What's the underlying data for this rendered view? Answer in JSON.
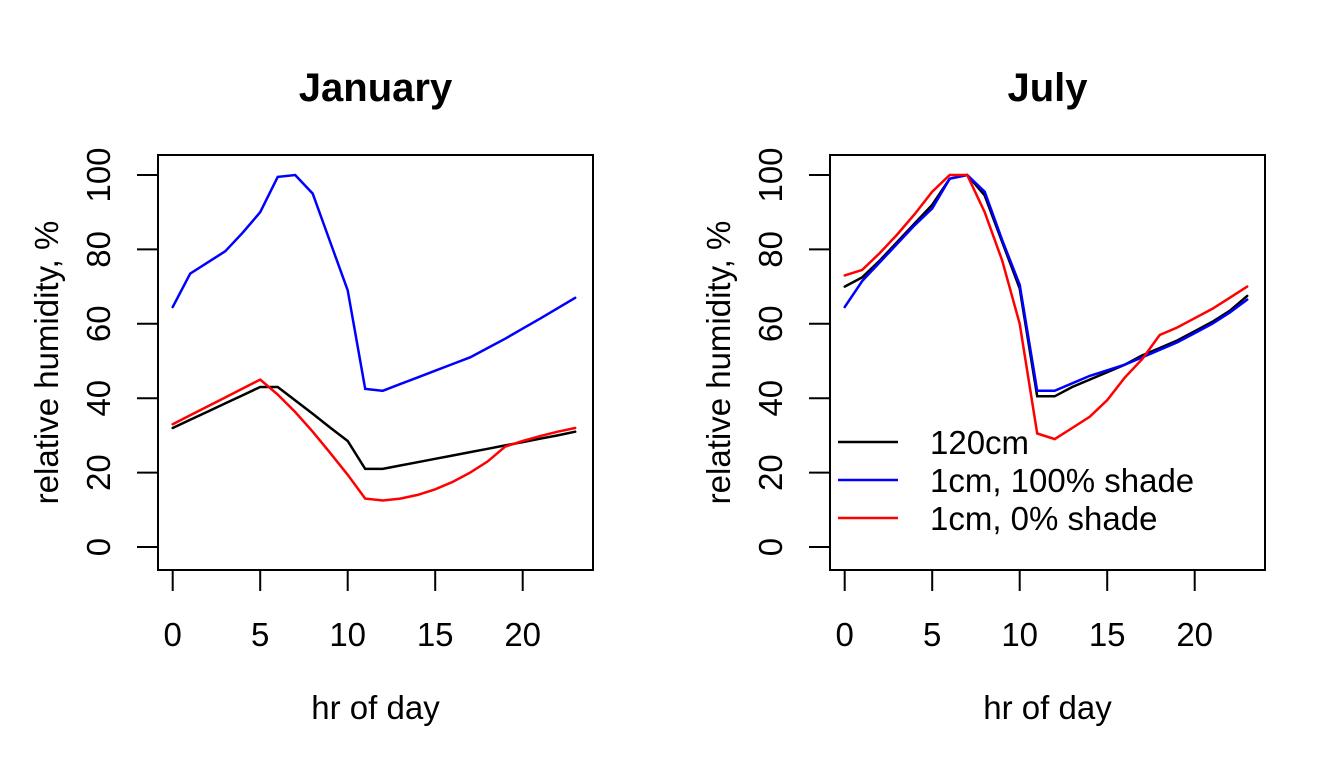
{
  "figure": {
    "background": "#ffffff",
    "axis_color": "#000000"
  },
  "chart_data": [
    {
      "type": "line",
      "title": "January",
      "xlabel": "hr of day",
      "ylabel": "relative humidity, %",
      "xlim": [
        0,
        23
      ],
      "ylim": [
        0,
        100
      ],
      "xticks": [
        0,
        5,
        10,
        15,
        20
      ],
      "yticks": [
        0,
        20,
        40,
        60,
        80,
        100
      ],
      "grid": false,
      "legend": false,
      "x": [
        0,
        1,
        2,
        3,
        4,
        5,
        6,
        7,
        8,
        9,
        10,
        11,
        12,
        13,
        14,
        15,
        16,
        17,
        18,
        19,
        20,
        21,
        22,
        23
      ],
      "series": [
        {
          "name": "120cm",
          "color": "#000000",
          "values": [
            32,
            34.2,
            36.4,
            38.6,
            40.8,
            43,
            43,
            39.4,
            35.8,
            32.1,
            28.5,
            21,
            21,
            21.9,
            22.8,
            23.7,
            24.6,
            25.5,
            26.4,
            27.3,
            28.2,
            29.1,
            30,
            31
          ]
        },
        {
          "name": "1cm, 100% shade",
          "color": "#0000ff",
          "values": [
            64.5,
            73.5,
            76.5,
            79.5,
            84.5,
            90,
            99.5,
            100,
            95,
            82,
            69,
            42.5,
            42,
            43.8,
            45.6,
            47.4,
            49.2,
            51,
            53.5,
            56,
            58.7,
            61.4,
            64.2,
            67
          ]
        },
        {
          "name": "1cm, 0% shade",
          "color": "#ff0000",
          "values": [
            33,
            35.4,
            37.8,
            40.2,
            42.6,
            45,
            41,
            36.3,
            31,
            25.3,
            19.4,
            13,
            12.5,
            13,
            14,
            15.5,
            17.5,
            20,
            23,
            27,
            28.5,
            29.8,
            31,
            32
          ]
        }
      ]
    },
    {
      "type": "line",
      "title": "July",
      "xlabel": "hr of day",
      "ylabel": "relative humidity, %",
      "xlim": [
        0,
        23
      ],
      "ylim": [
        0,
        100
      ],
      "xticks": [
        0,
        5,
        10,
        15,
        20
      ],
      "yticks": [
        0,
        20,
        40,
        60,
        80,
        100
      ],
      "grid": false,
      "legend": true,
      "legend_position": "lower-left-inside",
      "x": [
        0,
        1,
        2,
        3,
        4,
        5,
        6,
        7,
        8,
        9,
        10,
        11,
        12,
        13,
        14,
        15,
        16,
        17,
        18,
        19,
        20,
        21,
        22,
        23
      ],
      "series": [
        {
          "name": "120cm",
          "color": "#000000",
          "values": [
            70,
            72.5,
            77,
            82,
            87,
            92,
            99,
            100,
            94.5,
            82,
            69.5,
            40.5,
            40.5,
            43,
            45,
            47,
            49,
            51.5,
            53.5,
            55.5,
            58,
            60.5,
            63.5,
            67.5
          ]
        },
        {
          "name": "1cm, 100% shade",
          "color": "#0000ff",
          "values": [
            64.5,
            71.5,
            76.5,
            81.5,
            86.5,
            91,
            99,
            100,
            95.5,
            82.5,
            70.5,
            42,
            42,
            44,
            46,
            47.5,
            49,
            51,
            53,
            55,
            57.5,
            60,
            63,
            66.5
          ]
        },
        {
          "name": "1cm, 0% shade",
          "color": "#ff0000",
          "values": [
            73,
            74.5,
            79,
            84,
            89.5,
            95.5,
            100,
            100,
            90,
            77,
            60,
            30.5,
            29,
            32,
            35,
            39.5,
            45.5,
            50.5,
            57,
            59,
            61.5,
            64,
            67,
            70
          ]
        }
      ]
    }
  ]
}
